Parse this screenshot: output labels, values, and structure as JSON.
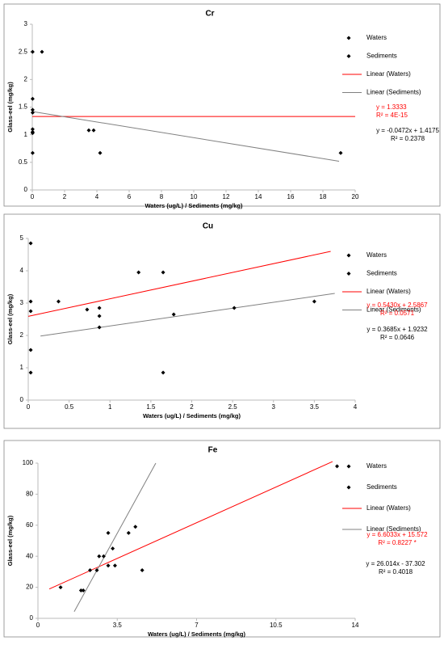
{
  "chart_data": [
    {
      "type": "scatter",
      "title": "Cr",
      "x_label": "Waters (ug/L) / Sediments (mg/kg)",
      "y_label": "Glass-eel (mg/kg)",
      "xlim": [
        0,
        20
      ],
      "xticks": [
        0,
        2,
        4,
        6,
        8,
        10,
        12,
        14,
        16,
        18,
        20
      ],
      "ylim": [
        0,
        3
      ],
      "yticks": [
        0,
        0.5,
        1,
        1.5,
        2,
        2.5,
        3
      ],
      "series": [
        {
          "name": "Waters",
          "color": "#000000",
          "x": [
            0.02,
            0.02,
            0.02,
            0.02,
            0.02,
            0.02
          ],
          "values": [
            2.5,
            1.65,
            1.45,
            1.1,
            1.05,
            0.67
          ]
        },
        {
          "name": "Sediments",
          "color": "#000000",
          "x": [
            0.6,
            0.02,
            0.02,
            3.5,
            3.8,
            4.2,
            19.1
          ],
          "values": [
            2.5,
            1.4,
            1.03,
            1.08,
            1.08,
            0.67,
            0.67
          ]
        }
      ],
      "trendlines": [
        {
          "name": "Linear (Waters)",
          "color": "#ff0000",
          "x": [
            0,
            20
          ],
          "values": [
            1.33,
            1.33
          ]
        },
        {
          "name": "Linear (Sediments)",
          "color": "#808080",
          "x": [
            0,
            19
          ],
          "values": [
            1.42,
            0.52
          ]
        }
      ],
      "annotations": [
        {
          "color": "#ff0000",
          "lines": [
            "y = 1.3333",
            "R² = 4E-15"
          ]
        },
        {
          "color": "#000000",
          "lines": [
            "y = -0.0472x + 1.4175",
            "R² = 0.2378"
          ]
        }
      ]
    },
    {
      "type": "scatter",
      "title": "Cu",
      "x_label": "Waters (ug/L) / Sediments (mg/kg)",
      "y_label": "Glass-eel (mg/kg)",
      "xlim": [
        0,
        4
      ],
      "xticks": [
        0,
        0.5,
        1,
        1.5,
        2,
        2.5,
        3,
        3.5,
        4
      ],
      "ylim": [
        0,
        5
      ],
      "yticks": [
        0,
        1,
        2,
        3,
        4,
        5
      ],
      "series": [
        {
          "name": "Waters",
          "color": "#000000",
          "x": [
            0.03,
            0.03,
            0.03,
            0.03,
            0.03,
            0.37,
            0.72,
            1.35,
            1.65
          ],
          "values": [
            4.85,
            3.05,
            2.75,
            1.55,
            0.85,
            3.05,
            2.8,
            3.95,
            3.95
          ]
        },
        {
          "name": "Sediments",
          "color": "#000000",
          "x": [
            0.87,
            0.87,
            0.87,
            1.65,
            1.78,
            2.52,
            3.5
          ],
          "values": [
            2.85,
            2.6,
            2.25,
            0.85,
            2.65,
            2.85,
            3.05
          ]
        }
      ],
      "trendlines": [
        {
          "name": "Linear (Waters)",
          "color": "#ff0000",
          "x": [
            0,
            3.7
          ],
          "values": [
            2.59,
            4.6
          ]
        },
        {
          "name": "Linear (Sediments)",
          "color": "#808080",
          "x": [
            0.15,
            3.75
          ],
          "values": [
            1.98,
            3.3
          ]
        }
      ],
      "annotations": [
        {
          "color": "#ff0000",
          "lines": [
            "y = 0.5430x + 2.5867",
            "R² = 0.0571"
          ]
        },
        {
          "color": "#000000",
          "lines": [
            "y = 0.3685x + 1.9232",
            "R² = 0.0646"
          ]
        }
      ]
    },
    {
      "type": "scatter",
      "title": "Fe",
      "x_label": "Waters (ug/L) / Sediments (mg/kg)",
      "y_label": "Glass-eel (mg/kg)",
      "xlim": [
        0,
        14
      ],
      "xticks": [
        0,
        3.5,
        7,
        10.5,
        14
      ],
      "ylim": [
        0,
        100
      ],
      "yticks": [
        0,
        20,
        40,
        60,
        80,
        100
      ],
      "series": [
        {
          "name": "Waters",
          "color": "#000000",
          "x": [
            1,
            2.3,
            2.7,
            3.1,
            3.3,
            4,
            4.3,
            13.2
          ],
          "values": [
            20,
            31,
            40,
            55,
            45,
            55,
            59,
            98
          ]
        },
        {
          "name": "Sediments",
          "color": "#000000",
          "x": [
            1.9,
            2,
            2.6,
            2.9,
            3.1,
            3.4,
            4.6
          ],
          "values": [
            18,
            18,
            31,
            40,
            34,
            34,
            31
          ]
        }
      ],
      "trendlines": [
        {
          "name": "Linear (Waters)",
          "color": "#ff0000",
          "x": [
            0.5,
            13
          ],
          "values": [
            18.9,
            101
          ]
        },
        {
          "name": "Linear (Sediments)",
          "color": "#808080",
          "x": [
            1.6,
            5.2
          ],
          "values": [
            4.3,
            100
          ]
        }
      ],
      "annotations": [
        {
          "color": "#ff0000",
          "lines": [
            "y = 6.6033x + 15.572",
            "R² = 0.8227 *"
          ]
        },
        {
          "color": "#000000",
          "lines": [
            "y = 26.014x - 37.302",
            "R² = 0.4018"
          ]
        }
      ]
    }
  ]
}
